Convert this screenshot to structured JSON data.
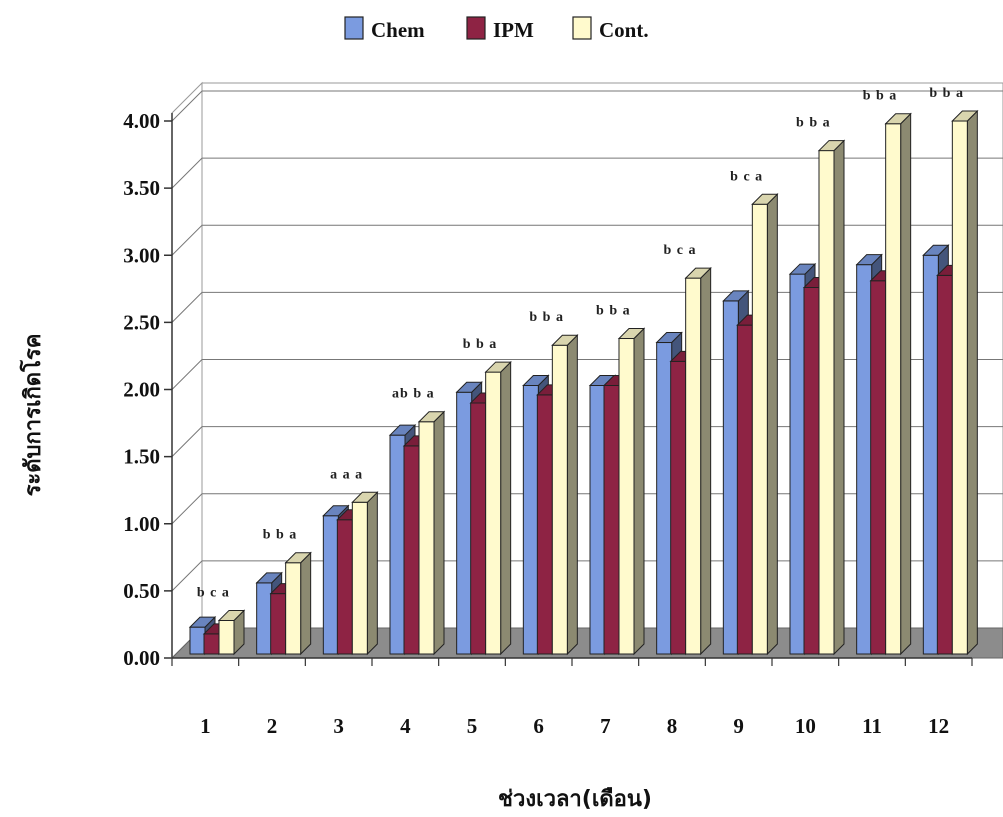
{
  "chart_data": {
    "type": "bar",
    "style": "3d-clustered",
    "categories": [
      "1",
      "2",
      "3",
      "4",
      "5",
      "6",
      "7",
      "8",
      "9",
      "10",
      "11",
      "12"
    ],
    "series": [
      {
        "name": "Chem",
        "color": "#7B9BE0",
        "values": [
          0.2,
          0.53,
          1.03,
          1.63,
          1.95,
          2.0,
          2.0,
          2.32,
          2.63,
          2.83,
          2.9,
          2.97
        ]
      },
      {
        "name": "IPM",
        "color": "#8E2344",
        "values": [
          0.15,
          0.45,
          1.0,
          1.55,
          1.87,
          1.93,
          2.0,
          2.18,
          2.45,
          2.73,
          2.78,
          2.82
        ]
      },
      {
        "name": "Cont.",
        "color": "#FFFACD",
        "values": [
          0.25,
          0.68,
          1.13,
          1.73,
          2.1,
          2.3,
          2.35,
          2.8,
          3.35,
          3.75,
          3.95,
          3.97
        ]
      }
    ],
    "significance": [
      "b c a",
      "b b a",
      "a a a",
      "ab b a",
      "b b a",
      "b b a",
      "b b a",
      "b c a",
      "b c a",
      "b b a",
      "b b a",
      "b b a"
    ],
    "yticks": [
      "0.00",
      "0.50",
      "1.00",
      "1.50",
      "2.00",
      "2.50",
      "3.00",
      "3.50",
      "4.00"
    ],
    "ylim": [
      0,
      4
    ],
    "xlabel": "ช่วงเวลา(เดือน)",
    "ylabel": "ระดับการเกิดโรค",
    "legend_position": "top-center",
    "grid": true
  }
}
